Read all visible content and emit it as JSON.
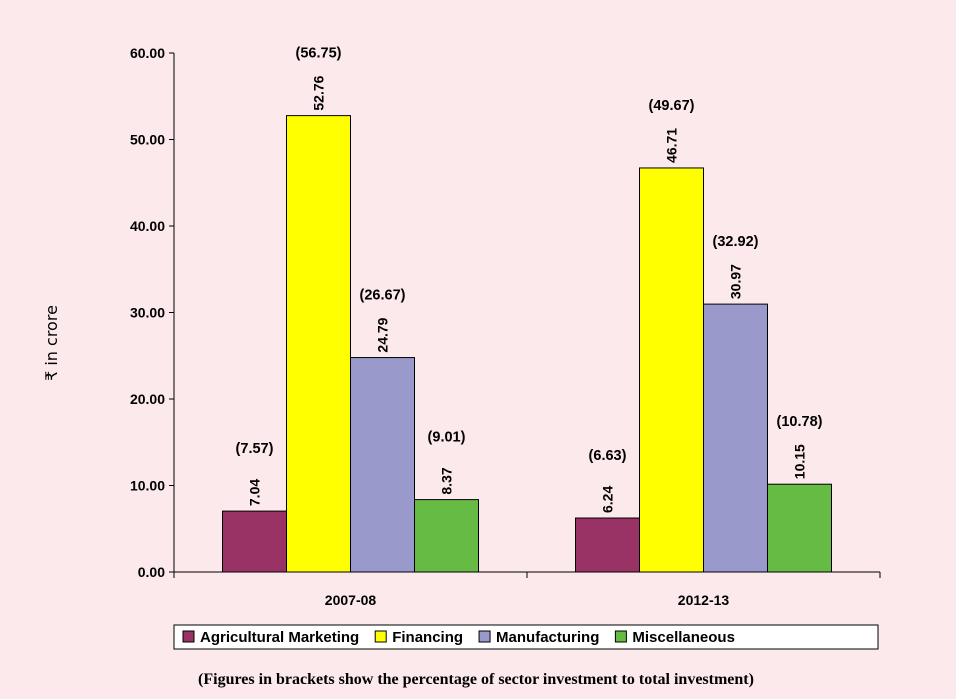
{
  "chart_data": {
    "type": "bar",
    "categories": [
      "2007-08",
      "2012-13"
    ],
    "series": [
      {
        "name": "Agricultural Marketing",
        "color": "#993366",
        "values": [
          7.04,
          6.24
        ],
        "percent_labels": [
          "(7.57)",
          "(6.63)"
        ]
      },
      {
        "name": "Financing",
        "color": "#ffff00",
        "values": [
          52.76,
          46.71
        ],
        "percent_labels": [
          "(56.75)",
          "(49.67)"
        ]
      },
      {
        "name": "Manufacturing",
        "color": "#9999cc",
        "values": [
          24.79,
          30.97
        ],
        "percent_labels": [
          "(26.67)",
          "(32.92)"
        ]
      },
      {
        "name": "Miscellaneous",
        "color": "#66bb44",
        "values": [
          8.37,
          10.15
        ],
        "percent_labels": [
          "(9.01)",
          "(10.78)"
        ]
      }
    ],
    "value_labels": [
      [
        "7.04",
        "6.24"
      ],
      [
        "52.76",
        "46.71"
      ],
      [
        "24.79",
        "30.97"
      ],
      [
        "8.37",
        "10.15"
      ]
    ],
    "ylabel": "₹ in crore",
    "yticks": [
      "0.00",
      "10.00",
      "20.00",
      "30.00",
      "40.00",
      "50.00",
      "60.00"
    ],
    "ylim": [
      0,
      60
    ],
    "grid": false,
    "legend_position": "bottom",
    "footnote": "(Figures in brackets show the percentage of sector investment to total investment)"
  }
}
